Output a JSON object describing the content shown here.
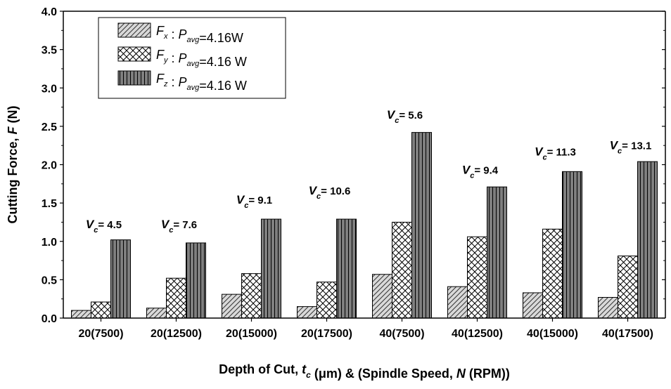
{
  "chart_data": {
    "type": "bar",
    "xlabel_parts": [
      {
        "text": "Depth of Cut, ",
        "italic": false,
        "sub": false
      },
      {
        "text": "t",
        "italic": true,
        "sub": false
      },
      {
        "text": "c",
        "italic": true,
        "sub": true
      },
      {
        "text": " (",
        "italic": false,
        "sub": false
      },
      {
        "text": "μ",
        "italic": false,
        "sub": false
      },
      {
        "text": "m) & (Spindle Speed, ",
        "italic": false,
        "sub": false
      },
      {
        "text": "N",
        "italic": true,
        "sub": false
      },
      {
        "text": " (RPM))",
        "italic": false,
        "sub": false
      }
    ],
    "ylabel_parts": [
      {
        "text": "Cutting Force, ",
        "italic": false
      },
      {
        "text": "F",
        "italic": true
      },
      {
        "text": " (N)",
        "italic": false
      }
    ],
    "categories": [
      "20(7500)",
      "20(12500)",
      "20(15000)",
      "20(17500)",
      "40(7500)",
      "40(12500)",
      "40(15000)",
      "40(17500)"
    ],
    "ylim": [
      0.0,
      4.0
    ],
    "yticks": [
      "0.0",
      "0.5",
      "1.0",
      "1.5",
      "2.0",
      "2.5",
      "3.0",
      "3.5",
      "4.0"
    ],
    "series": [
      {
        "name_parts": [
          {
            "t": "F",
            "s": "x"
          },
          {
            "t": " : ",
            "s": ""
          },
          {
            "t": "P",
            "s": "avg"
          },
          {
            "t": "=4.16W",
            "s": ""
          }
        ],
        "pattern": "diagonal",
        "values": [
          0.1,
          0.13,
          0.31,
          0.15,
          0.57,
          0.41,
          0.33,
          0.27
        ]
      },
      {
        "name_parts": [
          {
            "t": "F",
            "s": "y"
          },
          {
            "t": " : ",
            "s": ""
          },
          {
            "t": "P",
            "s": "avg"
          },
          {
            "t": "=4.16 W",
            "s": ""
          }
        ],
        "pattern": "crosshatch",
        "values": [
          0.21,
          0.52,
          0.58,
          0.47,
          1.25,
          1.06,
          1.16,
          0.81
        ]
      },
      {
        "name_parts": [
          {
            "t": "F",
            "s": "z"
          },
          {
            "t": " : ",
            "s": ""
          },
          {
            "t": "P",
            "s": "avg"
          },
          {
            "t": "=4.16 W",
            "s": ""
          }
        ],
        "pattern": "vertical",
        "values": [
          1.02,
          0.98,
          1.29,
          1.29,
          2.42,
          1.71,
          1.91,
          2.04
        ]
      }
    ],
    "annotations": [
      {
        "symbol": "V",
        "sub": "c",
        "text": "= 4.5",
        "category": 0,
        "y": 1.17
      },
      {
        "symbol": "V",
        "sub": "c",
        "text": "= 7.6",
        "category": 1,
        "y": 1.17
      },
      {
        "symbol": "V",
        "sub": "c",
        "text": "= 9.1",
        "category": 2,
        "y": 1.49
      },
      {
        "symbol": "V",
        "sub": "c",
        "text": "= 10.6",
        "category": 3,
        "y": 1.61
      },
      {
        "symbol": "V",
        "sub": "c",
        "text": "= 5.6",
        "category": 4,
        "y": 2.6
      },
      {
        "symbol": "V",
        "sub": "c",
        "text": "= 9.4",
        "category": 5,
        "y": 1.88
      },
      {
        "symbol": "V",
        "sub": "c",
        "text": "= 11.3",
        "category": 6,
        "y": 2.12
      },
      {
        "symbol": "V",
        "sub": "c",
        "text": "= 13.1",
        "category": 7,
        "y": 2.2
      }
    ],
    "legend_position": "top-left",
    "grid": false
  }
}
